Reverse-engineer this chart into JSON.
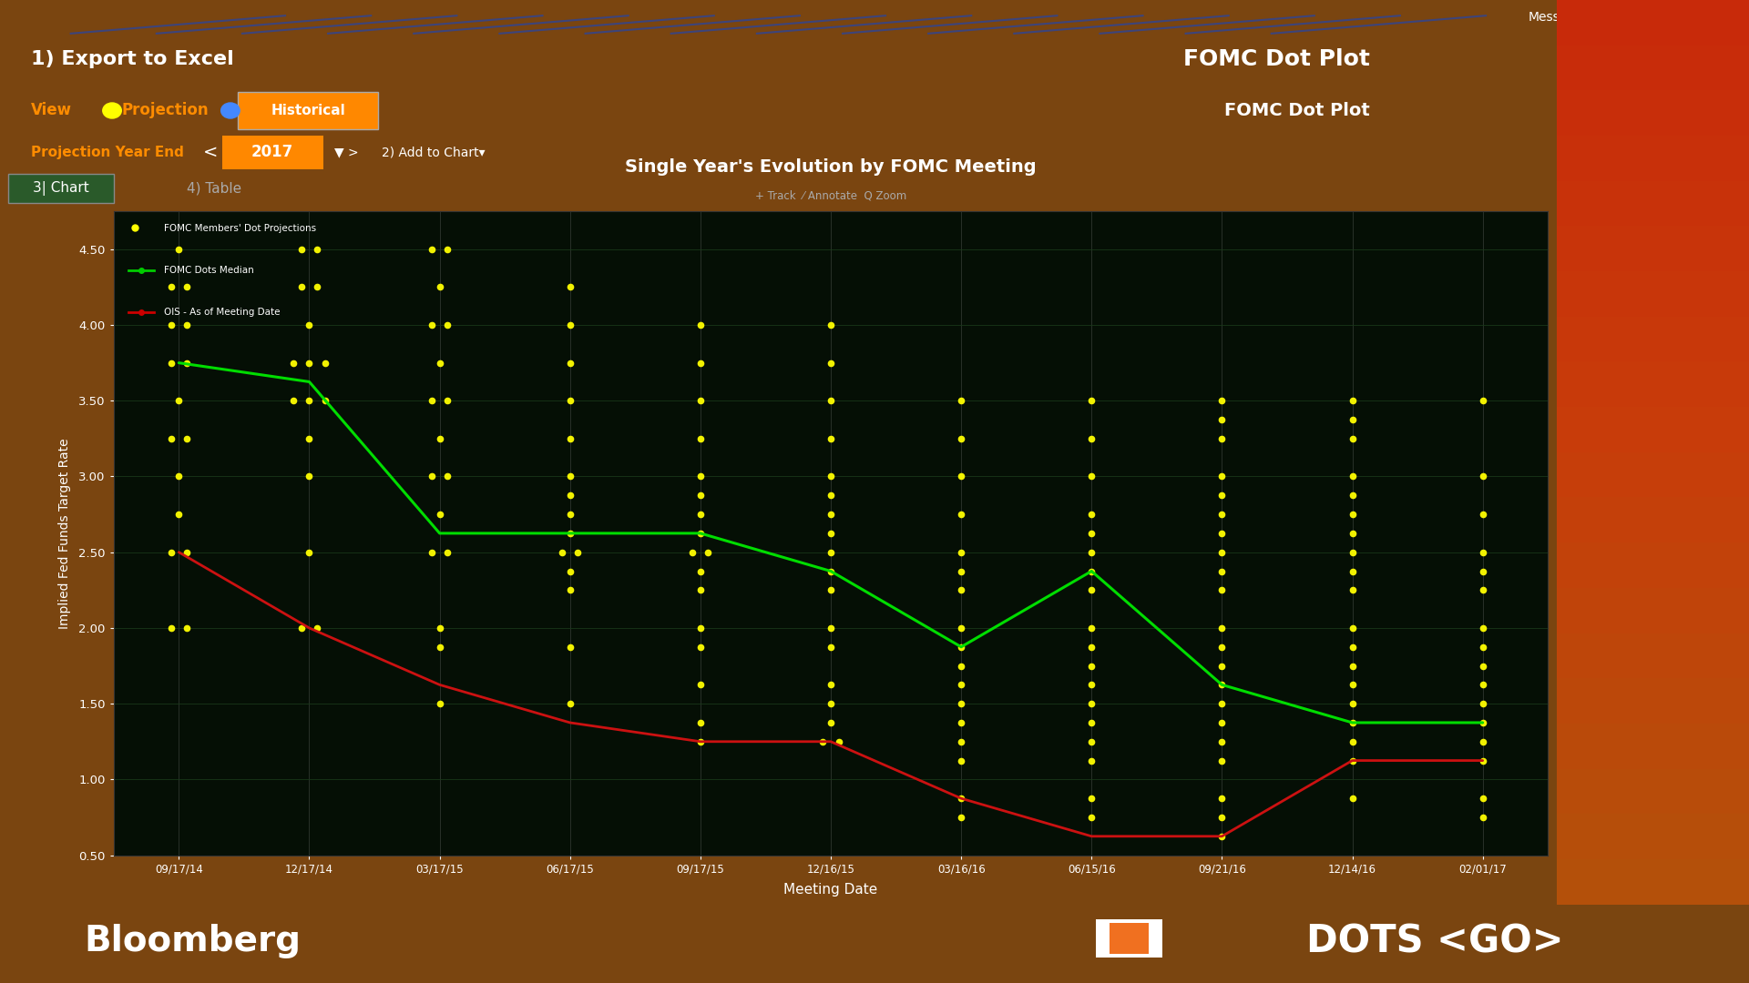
{
  "title": "Single Year's Evolution by FOMC Meeting",
  "subtitle": "+ Track  ⁄ Annotate  Q Zoom",
  "xlabel": "Meeting Date",
  "ylabel": "Implied Fed Funds Target Rate",
  "ylim": [
    0.5,
    4.75
  ],
  "yticks": [
    0.5,
    1.0,
    1.5,
    2.0,
    2.5,
    3.0,
    3.5,
    4.0,
    4.5
  ],
  "chart_bg": "#050f05",
  "grid_color": "#1a3a1a",
  "x_dates": [
    "09/17/14",
    "12/17/14",
    "03/17/15",
    "06/17/15",
    "09/17/15",
    "12/16/15",
    "03/16/16",
    "06/15/16",
    "09/21/16",
    "12/14/16",
    "02/01/17"
  ],
  "green_line": [
    3.75,
    3.625,
    2.625,
    2.625,
    2.625,
    2.375,
    1.875,
    2.375,
    1.625,
    1.375,
    1.375
  ],
  "red_line": [
    2.5,
    2.0,
    1.625,
    1.375,
    1.25,
    1.25,
    0.875,
    0.625,
    0.625,
    1.125,
    1.125
  ],
  "dots": {
    "09/17/14": [
      4.5,
      4.25,
      4.25,
      4.0,
      4.0,
      3.75,
      3.75,
      3.5,
      3.25,
      3.25,
      3.0,
      2.75,
      2.5,
      2.5,
      2.0,
      2.0
    ],
    "12/17/14": [
      4.5,
      4.5,
      4.25,
      4.25,
      4.0,
      3.75,
      3.75,
      3.75,
      3.5,
      3.5,
      3.5,
      3.25,
      3.0,
      2.5,
      2.0,
      2.0
    ],
    "03/17/15": [
      4.5,
      4.5,
      4.25,
      4.0,
      4.0,
      3.75,
      3.5,
      3.5,
      3.25,
      3.0,
      3.0,
      2.75,
      2.5,
      2.5,
      2.0,
      1.875,
      1.5
    ],
    "06/17/15": [
      4.25,
      4.0,
      3.75,
      3.5,
      3.25,
      3.0,
      2.875,
      2.75,
      2.625,
      2.5,
      2.5,
      2.375,
      2.25,
      1.875,
      1.5
    ],
    "09/17/15": [
      4.0,
      3.75,
      3.5,
      3.25,
      3.0,
      2.875,
      2.75,
      2.625,
      2.5,
      2.5,
      2.375,
      2.25,
      2.0,
      1.875,
      1.625,
      1.375,
      1.25
    ],
    "12/16/15": [
      4.0,
      3.75,
      3.5,
      3.25,
      3.0,
      2.875,
      2.75,
      2.625,
      2.5,
      2.375,
      2.25,
      2.0,
      1.875,
      1.625,
      1.5,
      1.375,
      1.25,
      1.25
    ],
    "03/16/16": [
      3.5,
      3.25,
      3.0,
      2.75,
      2.5,
      2.375,
      2.25,
      2.0,
      1.875,
      1.75,
      1.625,
      1.5,
      1.375,
      1.25,
      1.125,
      0.875,
      0.75
    ],
    "06/15/16": [
      3.5,
      3.25,
      3.0,
      2.75,
      2.625,
      2.5,
      2.375,
      2.25,
      2.0,
      1.875,
      1.75,
      1.625,
      1.5,
      1.375,
      1.25,
      1.125,
      0.875,
      0.75
    ],
    "09/21/16": [
      3.5,
      3.375,
      3.25,
      3.0,
      2.875,
      2.75,
      2.625,
      2.5,
      2.375,
      2.25,
      2.0,
      1.875,
      1.75,
      1.625,
      1.5,
      1.375,
      1.25,
      1.125,
      0.875,
      0.75,
      0.625
    ],
    "12/14/16": [
      3.5,
      3.375,
      3.25,
      3.0,
      2.875,
      2.75,
      2.625,
      2.5,
      2.375,
      2.25,
      2.0,
      1.875,
      1.75,
      1.625,
      1.5,
      1.375,
      1.25,
      1.125,
      0.875
    ],
    "02/01/17": [
      3.5,
      3.0,
      2.75,
      2.5,
      2.375,
      2.25,
      2.0,
      1.875,
      1.75,
      1.625,
      1.5,
      1.375,
      1.25,
      1.125,
      0.875,
      0.75
    ]
  },
  "legend": [
    "FOMC Members' Dot Projections",
    "FOMC Dots Median",
    "OIS - As of Meeting Date"
  ],
  "legend_colors": [
    "#ffff00",
    "#00cc00",
    "#cc0000"
  ],
  "fomc_label_color": "#ff8c00",
  "bloomberg_blue": "#1a5fa8",
  "dots_go_orange": "#f07020",
  "room_bg": "#7a4510",
  "terminal_bg": "#080808",
  "top_stripe_color": "#cc1111",
  "header_bg": "#1a0000"
}
